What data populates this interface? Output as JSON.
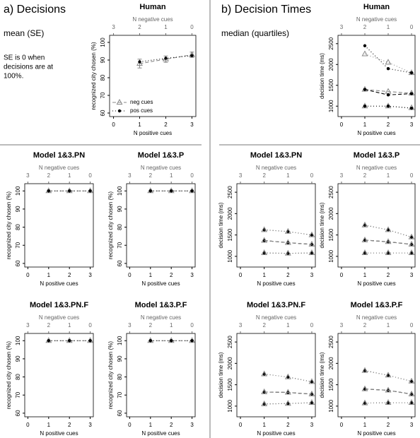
{
  "labels": {
    "a_title": "a) Decisions",
    "a_subtitle": "mean (SE)",
    "a_note": [
      "SE is 0 when",
      "decisions are at",
      "100%."
    ],
    "b_title": "b) Decision Times",
    "b_subtitle": "median (quartiles)"
  },
  "chart_data": [
    {
      "type": "line",
      "title": "Human",
      "xlabel": "N positive cues",
      "x2label": "N negative cues",
      "ylabel": "recognized city chosen (%)",
      "x": [
        1,
        2,
        3
      ],
      "xlim": [
        -0.15,
        3.15
      ],
      "xticks": [
        0,
        1,
        2,
        3
      ],
      "x2lim": [
        3.15,
        -0.15
      ],
      "x2ticks": [
        3,
        2,
        1,
        0
      ],
      "ylim": [
        58,
        104
      ],
      "yticks": [
        60,
        70,
        80,
        90,
        100
      ],
      "legend": "bottom-left",
      "series": [
        {
          "name": "neg cues",
          "color": "#888888",
          "marker": "triangle",
          "linestyle": "dashed",
          "values": [
            88,
            90.5,
            93
          ],
          "errors": [
            2.5,
            1.8,
            1.5
          ]
        },
        {
          "name": "pos cues",
          "color": "#000000",
          "marker": "dot",
          "linestyle": "dotted",
          "values": [
            89,
            91,
            92.5
          ]
        }
      ]
    },
    {
      "type": "line",
      "title": "Model 1&3.PN",
      "xlabel": "N positive cues",
      "x2label": "N negative cues",
      "ylabel": "recognized city chosen (%)",
      "x": [
        1,
        2,
        3
      ],
      "xlim": [
        -0.15,
        3.15
      ],
      "xticks": [
        0,
        1,
        2,
        3
      ],
      "x2lim": [
        3.15,
        -0.15
      ],
      "x2ticks": [
        3,
        2,
        1,
        0
      ],
      "ylim": [
        58,
        104
      ],
      "yticks": [
        60,
        70,
        80,
        90,
        100
      ],
      "series": [
        {
          "color": "#888888",
          "marker": "triangle",
          "linestyle": "dashed",
          "values": [
            100,
            100,
            100
          ]
        },
        {
          "color": "#000000",
          "marker": "dot",
          "linestyle": "dotted",
          "values": [
            100,
            100,
            100
          ]
        }
      ]
    },
    {
      "type": "line",
      "title": "Model 1&3.P",
      "xlabel": "N positive cues",
      "x2label": "N negative cues",
      "ylabel": "recognized city chosen (%)",
      "x": [
        1,
        2,
        3
      ],
      "xlim": [
        -0.15,
        3.15
      ],
      "xticks": [
        0,
        1,
        2,
        3
      ],
      "x2lim": [
        3.15,
        -0.15
      ],
      "x2ticks": [
        3,
        2,
        1,
        0
      ],
      "ylim": [
        58,
        104
      ],
      "yticks": [
        60,
        70,
        80,
        90,
        100
      ],
      "series": [
        {
          "color": "#888888",
          "marker": "triangle",
          "linestyle": "dashed",
          "values": [
            100,
            100,
            100
          ]
        },
        {
          "color": "#000000",
          "marker": "dot",
          "linestyle": "dotted",
          "values": [
            100,
            100,
            100
          ]
        }
      ]
    },
    {
      "type": "line",
      "title": "Model 1&3.PN.F",
      "xlabel": "N positive cues",
      "x2label": "N negative cues",
      "ylabel": "recognized city chosen (%)",
      "x": [
        1,
        2,
        3
      ],
      "xlim": [
        -0.15,
        3.15
      ],
      "xticks": [
        0,
        1,
        2,
        3
      ],
      "x2lim": [
        3.15,
        -0.15
      ],
      "x2ticks": [
        3,
        2,
        1,
        0
      ],
      "ylim": [
        58,
        104
      ],
      "yticks": [
        60,
        70,
        80,
        90,
        100
      ],
      "series": [
        {
          "color": "#888888",
          "marker": "triangle",
          "linestyle": "dashed",
          "values": [
            100,
            100,
            100
          ]
        },
        {
          "color": "#000000",
          "marker": "dot",
          "linestyle": "dotted",
          "values": [
            100,
            100,
            100
          ]
        }
      ]
    },
    {
      "type": "line",
      "title": "Model 1&3.P.F",
      "xlabel": "N positive cues",
      "x2label": "N negative cues",
      "ylabel": "recognized city chosen (%)",
      "x": [
        1,
        2,
        3
      ],
      "xlim": [
        -0.15,
        3.15
      ],
      "xticks": [
        0,
        1,
        2,
        3
      ],
      "x2lim": [
        3.15,
        -0.15
      ],
      "x2ticks": [
        3,
        2,
        1,
        0
      ],
      "ylim": [
        58,
        104
      ],
      "yticks": [
        60,
        70,
        80,
        90,
        100
      ],
      "series": [
        {
          "color": "#888888",
          "marker": "triangle",
          "linestyle": "dashed",
          "values": [
            100,
            100,
            100
          ]
        },
        {
          "color": "#000000",
          "marker": "dot",
          "linestyle": "dotted",
          "values": [
            100,
            100,
            100
          ]
        }
      ]
    },
    {
      "type": "line",
      "title": "Human",
      "xlabel": "N positive cues",
      "x2label": "N negative cues",
      "ylabel": "decision time (ms)",
      "x": [
        1,
        2,
        3
      ],
      "xlim": [
        -0.15,
        3.15
      ],
      "xticks": [
        0,
        1,
        2,
        3
      ],
      "x2lim": [
        3.15,
        -0.15
      ],
      "x2ticks": [
        3,
        2,
        1,
        0
      ],
      "ylim": [
        750,
        2700
      ],
      "yticks": [
        1000,
        1500,
        2000,
        2500
      ],
      "series": [
        {
          "color": "#888888",
          "marker": "triangle",
          "linestyle": "dashed",
          "values": [
            1400,
            1350,
            1310
          ],
          "lower": [
            1000,
            1000,
            960
          ],
          "upper": [
            2250,
            2050,
            1800
          ]
        },
        {
          "color": "#000000",
          "marker": "dot",
          "linestyle": "dashed",
          "values": [
            1400,
            1270,
            1300
          ],
          "lower": [
            1000,
            1000,
            950
          ],
          "upper": [
            2450,
            1900,
            1800
          ]
        }
      ]
    },
    {
      "type": "line",
      "title": "Model 1&3.PN",
      "xlabel": "N positive cues",
      "x2label": "N negative cues",
      "ylabel": "decision time (ms)",
      "x": [
        1,
        2,
        3
      ],
      "xlim": [
        -0.15,
        3.15
      ],
      "xticks": [
        0,
        1,
        2,
        3
      ],
      "x2lim": [
        3.15,
        -0.15
      ],
      "x2ticks": [
        3,
        2,
        1,
        0
      ],
      "ylim": [
        750,
        2700
      ],
      "yticks": [
        1000,
        1500,
        2000,
        2500
      ],
      "series": [
        {
          "color": "#000000",
          "marker": "dot",
          "linestyle": "dashed",
          "values": [
            1370,
            1320,
            1280
          ],
          "lower": [
            1080,
            1070,
            1080
          ],
          "upper": [
            1620,
            1580,
            1500
          ]
        },
        {
          "color": "#888888",
          "marker": "triangle",
          "linestyle": "dashed",
          "values": [
            1370,
            1320,
            1280
          ],
          "lower": [
            1080,
            1070,
            1080
          ],
          "upper": [
            1620,
            1580,
            1500
          ]
        }
      ]
    },
    {
      "type": "line",
      "title": "Model 1&3.P",
      "xlabel": "N positive cues",
      "x2label": "N negative cues",
      "ylabel": "decision time (ms)",
      "x": [
        1,
        2,
        3
      ],
      "xlim": [
        -0.15,
        3.15
      ],
      "xticks": [
        0,
        1,
        2,
        3
      ],
      "x2lim": [
        3.15,
        -0.15
      ],
      "x2ticks": [
        3,
        2,
        1,
        0
      ],
      "ylim": [
        750,
        2700
      ],
      "yticks": [
        1000,
        1500,
        2000,
        2500
      ],
      "series": [
        {
          "color": "#000000",
          "marker": "dot",
          "linestyle": "dashed",
          "values": [
            1380,
            1340,
            1280
          ],
          "lower": [
            1080,
            1080,
            1080
          ],
          "upper": [
            1730,
            1620,
            1450
          ]
        },
        {
          "color": "#888888",
          "marker": "triangle",
          "linestyle": "dashed",
          "values": [
            1380,
            1340,
            1280
          ],
          "lower": [
            1080,
            1080,
            1080
          ],
          "upper": [
            1730,
            1620,
            1450
          ]
        }
      ]
    },
    {
      "type": "line",
      "title": "Model 1&3.PN.F",
      "xlabel": "N positive cues",
      "x2label": "N negative cues",
      "ylabel": "decision time (ms)",
      "x": [
        1,
        2,
        3
      ],
      "xlim": [
        -0.15,
        3.15
      ],
      "xticks": [
        0,
        1,
        2,
        3
      ],
      "x2lim": [
        3.15,
        -0.15
      ],
      "x2ticks": [
        3,
        2,
        1,
        0
      ],
      "ylim": [
        750,
        2700
      ],
      "yticks": [
        1000,
        1500,
        2000,
        2500
      ],
      "series": [
        {
          "color": "#000000",
          "marker": "dot",
          "linestyle": "dashed",
          "values": [
            1330,
            1320,
            1280
          ],
          "lower": [
            1050,
            1060,
            1080
          ],
          "upper": [
            1750,
            1680,
            1570
          ]
        },
        {
          "color": "#888888",
          "marker": "triangle",
          "linestyle": "dashed",
          "values": [
            1330,
            1320,
            1280
          ],
          "lower": [
            1050,
            1060,
            1080
          ],
          "upper": [
            1750,
            1680,
            1570
          ]
        }
      ]
    },
    {
      "type": "line",
      "title": "Model 1&3.P.F",
      "xlabel": "N positive cues",
      "x2label": "N negative cues",
      "ylabel": "decision time (ms)",
      "x": [
        1,
        2,
        3
      ],
      "xlim": [
        -0.15,
        3.15
      ],
      "xticks": [
        0,
        1,
        2,
        3
      ],
      "x2lim": [
        3.15,
        -0.15
      ],
      "x2ticks": [
        3,
        2,
        1,
        0
      ],
      "ylim": [
        750,
        2700
      ],
      "yticks": [
        1000,
        1500,
        2000,
        2500
      ],
      "series": [
        {
          "color": "#000000",
          "marker": "dot",
          "linestyle": "dashed",
          "values": [
            1400,
            1370,
            1280
          ],
          "lower": [
            1070,
            1080,
            1080
          ],
          "upper": [
            1830,
            1720,
            1580
          ]
        },
        {
          "color": "#888888",
          "marker": "triangle",
          "linestyle": "dashed",
          "values": [
            1400,
            1370,
            1280
          ],
          "lower": [
            1070,
            1080,
            1080
          ],
          "upper": [
            1830,
            1720,
            1580
          ]
        }
      ]
    }
  ]
}
